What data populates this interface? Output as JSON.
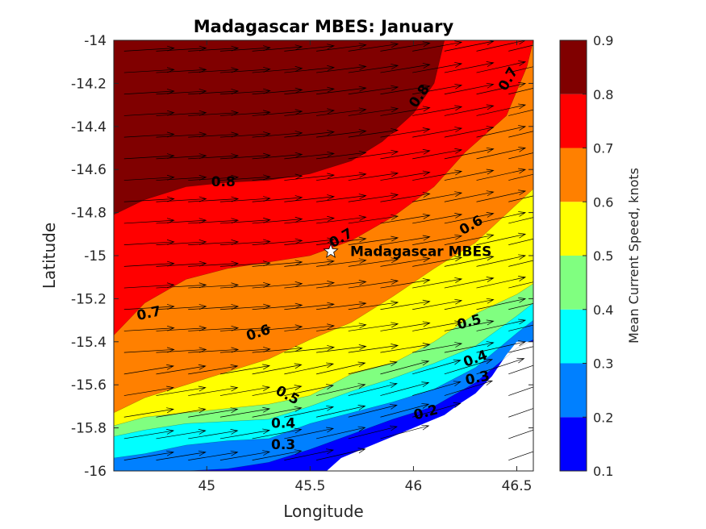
{
  "chart_data": {
    "type": "contourf",
    "title": "Madagascar MBES: January",
    "xlabel": "Longitude",
    "ylabel": "Latitude",
    "colorbar_label": "Mean Current Speed, knots",
    "xlim": [
      44.55,
      46.58
    ],
    "ylim": [
      -16,
      -14
    ],
    "xticks": [
      45,
      45.5,
      46,
      46.5
    ],
    "xtick_labels": [
      "45",
      "45.5",
      "46",
      "46.5"
    ],
    "yticks": [
      -14,
      -14.2,
      -14.4,
      -14.6,
      -14.8,
      -15,
      -15.2,
      -15.4,
      -15.6,
      -15.8,
      -16
    ],
    "ytick_labels": [
      "-14",
      "-14.2",
      "-14.4",
      "-14.6",
      "-14.8",
      "-15",
      "-15.2",
      "-15.4",
      "-15.6",
      "-15.8",
      "-16"
    ],
    "levels": [
      0.1,
      0.2,
      0.3,
      0.4,
      0.5,
      0.6,
      0.7,
      0.8,
      0.9
    ],
    "level_labels": [
      "0.1",
      "0.2",
      "0.3",
      "0.4",
      "0.5",
      "0.6",
      "0.7",
      "0.8",
      "0.9"
    ],
    "level_colors": [
      "#0000ff",
      "#0080ff",
      "#00ffff",
      "#80ff80",
      "#ffff00",
      "#ff8000",
      "#ff0000",
      "#800000"
    ],
    "contour_lines": [
      {
        "level": 0.8,
        "points": [
          [
            44.55,
            -14.81
          ],
          [
            44.7,
            -14.74
          ],
          [
            44.9,
            -14.68
          ],
          [
            45.1,
            -14.66
          ],
          [
            45.3,
            -14.65
          ],
          [
            45.5,
            -14.62
          ],
          [
            45.7,
            -14.56
          ],
          [
            45.85,
            -14.47
          ],
          [
            46.0,
            -14.34
          ],
          [
            46.1,
            -14.2
          ],
          [
            46.15,
            -14.0
          ]
        ]
      },
      {
        "level": 0.7,
        "points": [
          [
            44.55,
            -15.37
          ],
          [
            44.7,
            -15.22
          ],
          [
            44.9,
            -15.11
          ],
          [
            45.1,
            -15.06
          ],
          [
            45.3,
            -15.03
          ],
          [
            45.5,
            -15.0
          ],
          [
            45.7,
            -14.93
          ],
          [
            45.9,
            -14.82
          ],
          [
            46.1,
            -14.68
          ],
          [
            46.25,
            -14.52
          ],
          [
            46.45,
            -14.35
          ],
          [
            46.55,
            -14.12
          ],
          [
            46.58,
            -14.0
          ]
        ]
      },
      {
        "level": 0.6,
        "points": [
          [
            44.55,
            -15.73
          ],
          [
            44.7,
            -15.66
          ],
          [
            44.9,
            -15.6
          ],
          [
            45.1,
            -15.54
          ],
          [
            45.3,
            -15.48
          ],
          [
            45.5,
            -15.39
          ],
          [
            45.7,
            -15.31
          ],
          [
            45.9,
            -15.19
          ],
          [
            46.1,
            -15.06
          ],
          [
            46.3,
            -14.94
          ],
          [
            46.58,
            -14.69
          ]
        ]
      },
      {
        "level": 0.5,
        "points": [
          [
            44.55,
            -15.79
          ],
          [
            44.7,
            -15.75
          ],
          [
            44.9,
            -15.73
          ],
          [
            45.1,
            -15.71
          ],
          [
            45.3,
            -15.69
          ],
          [
            45.5,
            -15.65
          ],
          [
            45.7,
            -15.55
          ],
          [
            45.9,
            -15.5
          ],
          [
            46.1,
            -15.4
          ],
          [
            46.3,
            -15.27
          ],
          [
            46.5,
            -15.18
          ],
          [
            46.58,
            -15.13
          ]
        ]
      },
      {
        "level": 0.4,
        "points": [
          [
            44.55,
            -15.84
          ],
          [
            44.7,
            -15.81
          ],
          [
            44.9,
            -15.78
          ],
          [
            45.1,
            -15.77
          ],
          [
            45.3,
            -15.76
          ],
          [
            45.5,
            -15.7
          ],
          [
            45.7,
            -15.63
          ],
          [
            45.9,
            -15.57
          ],
          [
            46.1,
            -15.5
          ],
          [
            46.3,
            -15.42
          ],
          [
            46.5,
            -15.28
          ],
          [
            46.58,
            -15.22
          ]
        ]
      },
      {
        "level": 0.3,
        "points": [
          [
            44.55,
            -15.94
          ],
          [
            44.7,
            -15.92
          ],
          [
            44.9,
            -15.88
          ],
          [
            45.1,
            -15.86
          ],
          [
            45.3,
            -15.85
          ],
          [
            45.5,
            -15.78
          ],
          [
            45.7,
            -15.73
          ],
          [
            45.9,
            -15.68
          ],
          [
            46.1,
            -15.62
          ],
          [
            46.3,
            -15.52
          ],
          [
            46.5,
            -15.36
          ],
          [
            46.58,
            -15.3
          ]
        ]
      },
      {
        "level": 0.2,
        "points": [
          [
            44.55,
            -16.0
          ],
          [
            44.9,
            -16.0
          ],
          [
            45.1,
            -15.99
          ],
          [
            45.3,
            -15.96
          ],
          [
            45.5,
            -15.9
          ],
          [
            45.7,
            -15.83
          ],
          [
            45.9,
            -15.76
          ],
          [
            46.1,
            -15.7
          ],
          [
            46.3,
            -15.59
          ],
          [
            46.5,
            -15.43
          ],
          [
            46.58,
            -15.39
          ]
        ]
      }
    ],
    "land_polygon": [
      [
        45.58,
        -16.0
      ],
      [
        45.65,
        -15.94
      ],
      [
        45.75,
        -15.9
      ],
      [
        45.85,
        -15.86
      ],
      [
        45.95,
        -15.82
      ],
      [
        46.05,
        -15.78
      ],
      [
        46.15,
        -15.74
      ],
      [
        46.22,
        -15.69
      ],
      [
        46.3,
        -15.64
      ],
      [
        46.38,
        -15.56
      ],
      [
        46.45,
        -15.46
      ],
      [
        46.5,
        -15.4
      ],
      [
        46.58,
        -15.4
      ],
      [
        46.58,
        -16.0
      ]
    ],
    "contour_labels": [
      {
        "text": "0.8",
        "lon": 45.08,
        "lat": -14.66,
        "angle": 0
      },
      {
        "text": "0.8",
        "lon": 46.03,
        "lat": -14.26,
        "angle": -55
      },
      {
        "text": "0.7",
        "lon": 46.46,
        "lat": -14.18,
        "angle": -60
      },
      {
        "text": "0.7",
        "lon": 45.65,
        "lat": -14.92,
        "angle": -30
      },
      {
        "text": "0.7",
        "lon": 44.72,
        "lat": -15.27,
        "angle": -12
      },
      {
        "text": "0.6",
        "lon": 45.25,
        "lat": -15.36,
        "angle": -18
      },
      {
        "text": "0.6",
        "lon": 46.28,
        "lat": -14.86,
        "angle": -30
      },
      {
        "text": "0.5",
        "lon": 45.39,
        "lat": -15.65,
        "angle": 28
      },
      {
        "text": "0.5",
        "lon": 46.27,
        "lat": -15.31,
        "angle": -15
      },
      {
        "text": "0.4",
        "lon": 45.37,
        "lat": -15.78,
        "angle": 0
      },
      {
        "text": "0.4",
        "lon": 46.3,
        "lat": -15.48,
        "angle": -20
      },
      {
        "text": "0.3",
        "lon": 45.37,
        "lat": -15.88,
        "angle": 0
      },
      {
        "text": "0.3",
        "lon": 46.31,
        "lat": -15.57,
        "angle": -12
      },
      {
        "text": "0.2",
        "lon": 46.06,
        "lat": -15.73,
        "angle": -15
      }
    ],
    "site": {
      "name": "Madagascar MBES",
      "lon": 45.6,
      "lat": -14.98
    }
  }
}
